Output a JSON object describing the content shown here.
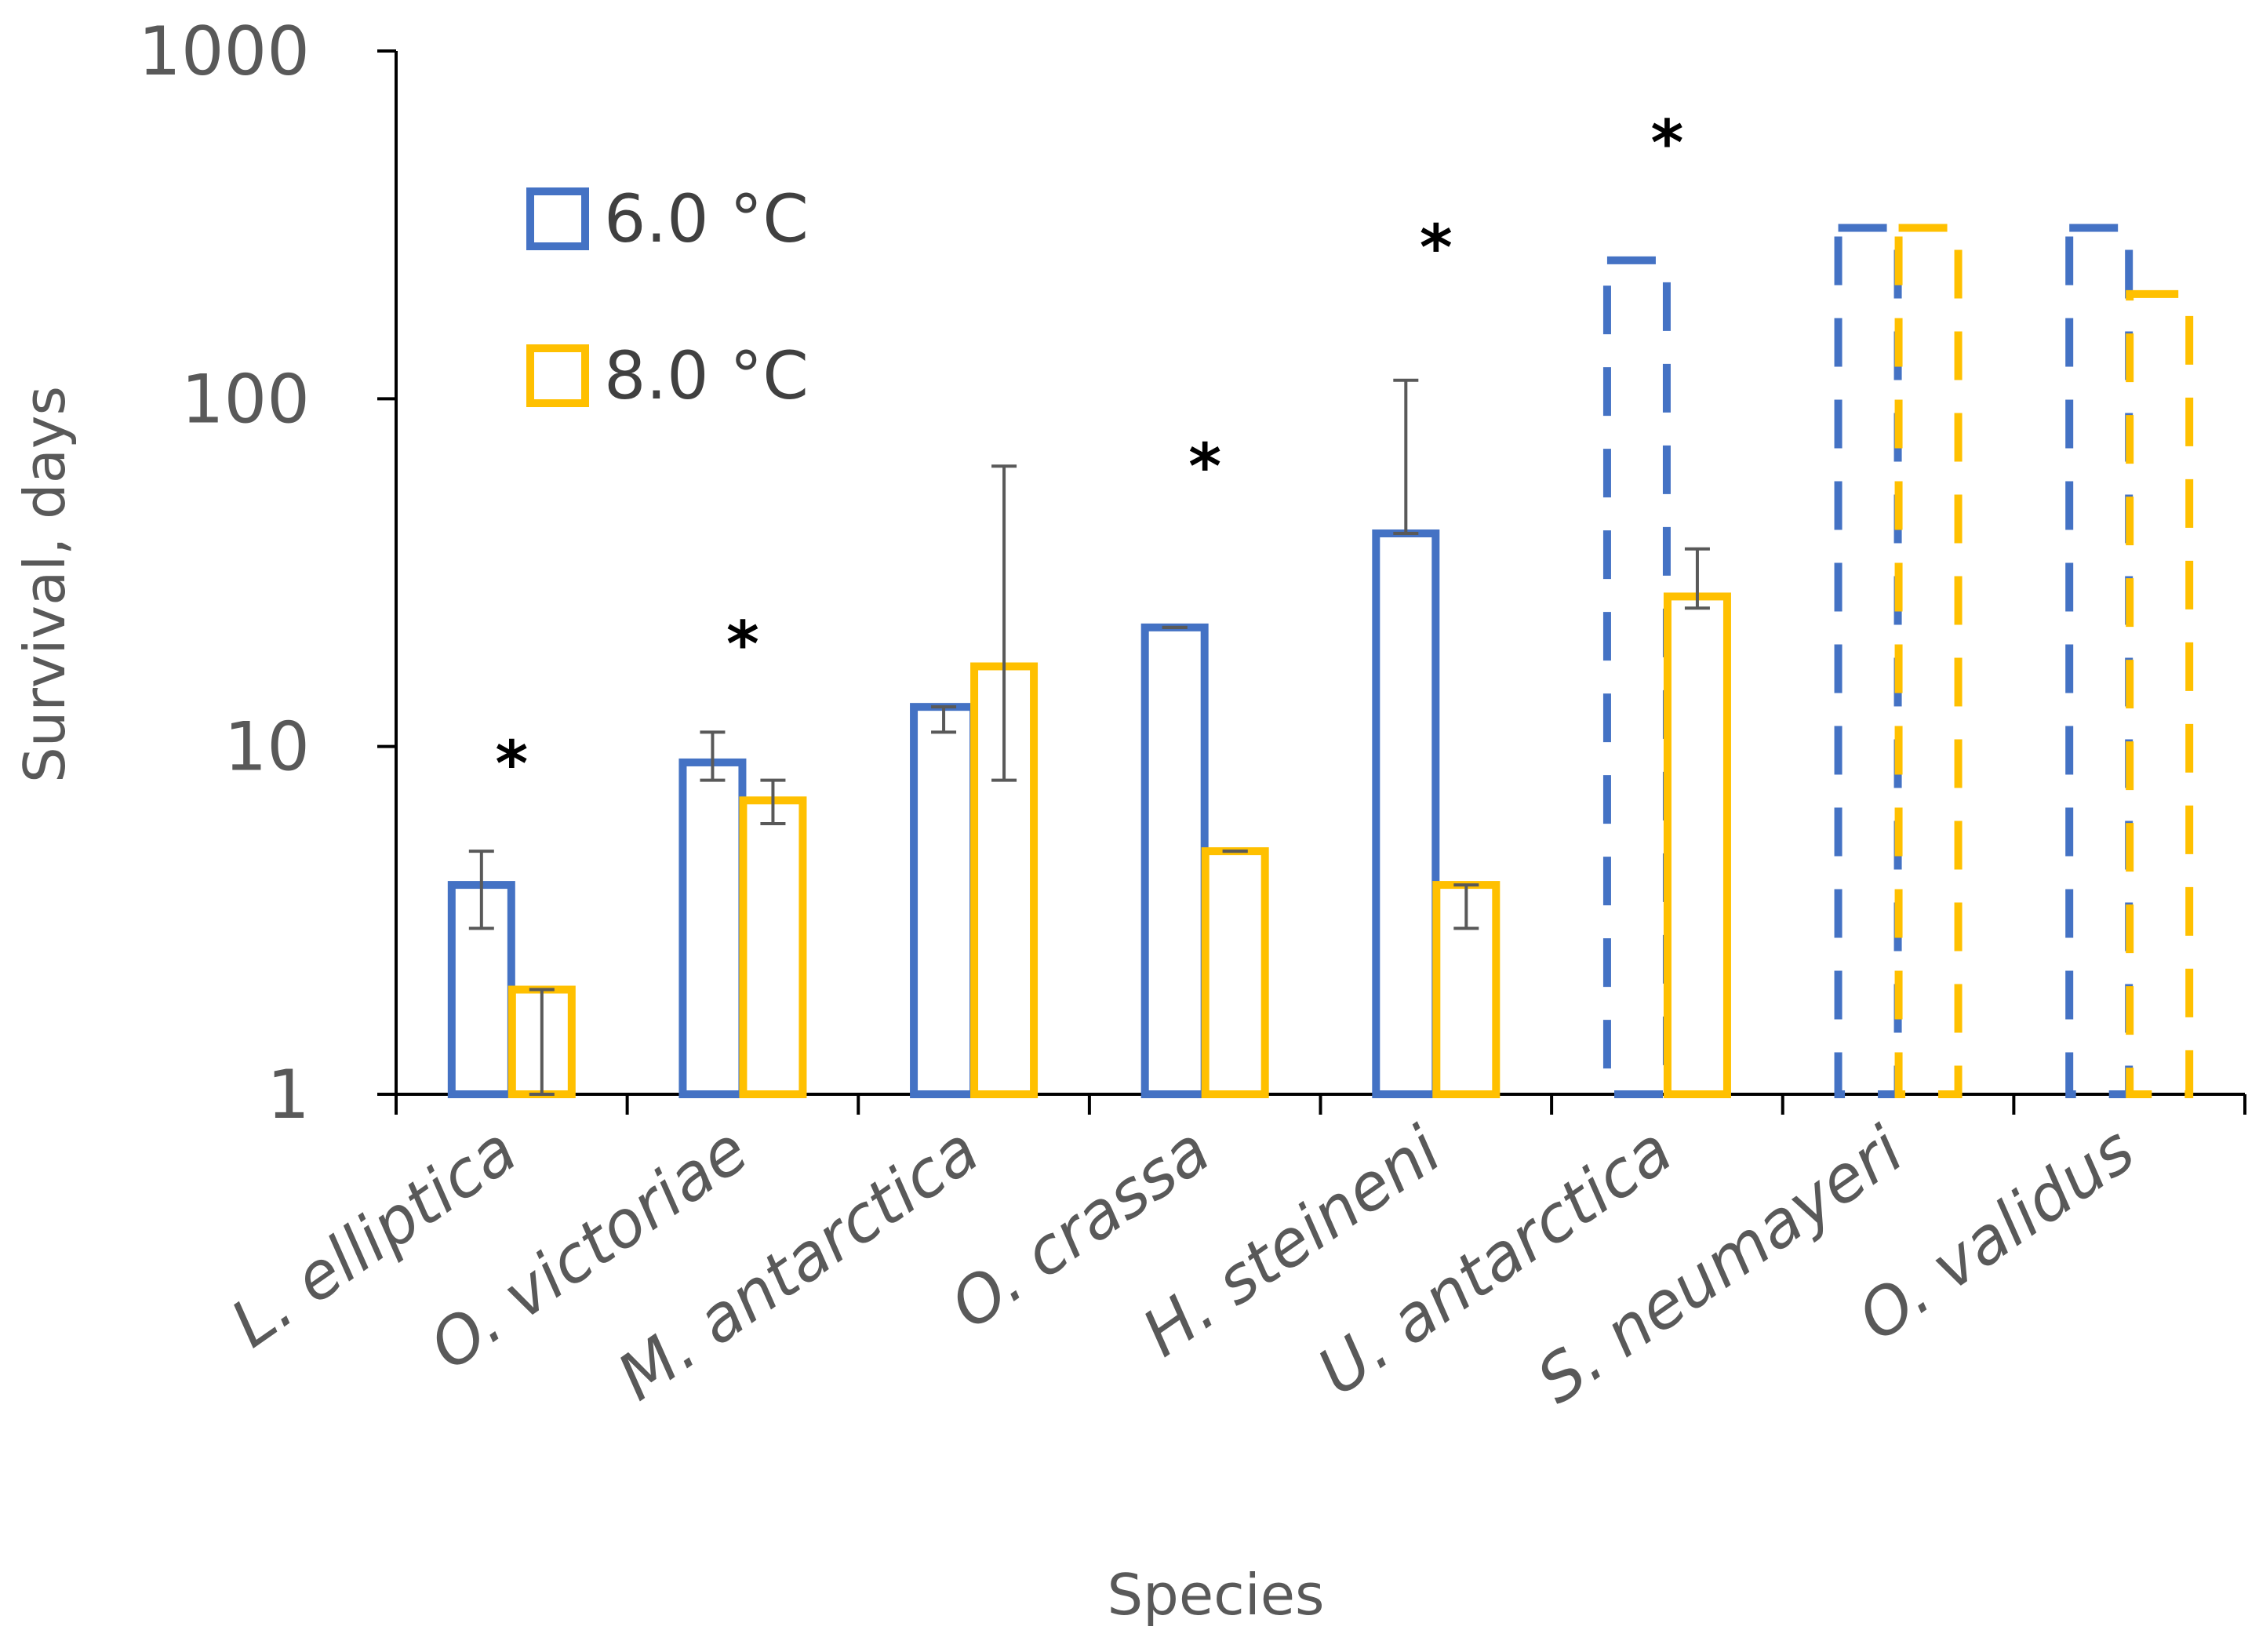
{
  "chart_data": {
    "type": "bar",
    "scale": "log",
    "title": "",
    "xlabel": "Species",
    "ylabel": "Survival, days",
    "ylim": [
      1,
      1000
    ],
    "y_ticks": [
      1,
      10,
      100,
      1000
    ],
    "y_tick_labels": [
      "1",
      "10",
      "100",
      "1000"
    ],
    "grid": false,
    "legend_position": "top-left",
    "categories": [
      "L. elliptica",
      "O. victoriae",
      "M. antarctica",
      "O. crassa",
      "H. steineni",
      "U. antarctica",
      "S. neumayeri",
      "O. validus"
    ],
    "series": [
      {
        "name": "6.0 °C",
        "color": "#4472C4",
        "values": [
          4,
          9,
          13,
          22,
          41,
          250,
          310,
          310
        ],
        "err_low": [
          3,
          8,
          11,
          22,
          41,
          null,
          null,
          null
        ],
        "err_high": [
          5,
          11,
          13,
          22,
          113,
          null,
          null,
          null
        ],
        "dashed": [
          false,
          false,
          false,
          false,
          false,
          true,
          true,
          true
        ]
      },
      {
        "name": "8.0 °C",
        "color": "#FFC000",
        "values": [
          2,
          7,
          17,
          5,
          4,
          27,
          310,
          200
        ],
        "err_low": [
          1,
          6,
          8,
          5,
          3,
          25,
          null,
          null
        ],
        "err_high": [
          2,
          8,
          64,
          5,
          4,
          37,
          null,
          null
        ],
        "dashed": [
          false,
          false,
          false,
          false,
          false,
          false,
          true,
          true
        ]
      }
    ],
    "significance_marker": "*",
    "significance_markers": [
      {
        "category": "L. elliptica",
        "y": 9.5
      },
      {
        "category": "O. victoriae",
        "y": 21
      },
      {
        "category": "O. crassa",
        "y": 68
      },
      {
        "category": "H. steineni",
        "y": 290
      },
      {
        "category": "U. antarctica",
        "y": 580
      }
    ]
  }
}
